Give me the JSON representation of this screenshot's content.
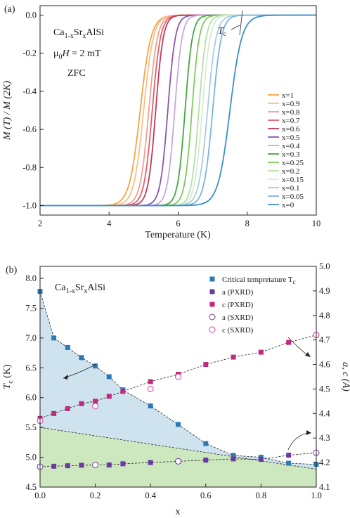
{
  "chart_data": [
    {
      "type": "line",
      "panel_label": "(a)",
      "xlabel": "Temperature (K)",
      "ylabel": "M (T) / M (2K)",
      "xlim": [
        2,
        10
      ],
      "ylim": [
        -1.05,
        0.05
      ],
      "xticks": [
        "2",
        "4",
        "6",
        "8",
        "10"
      ],
      "yticks": [
        "0.0",
        "-0.2",
        "-0.4",
        "-0.6",
        "-0.8",
        "-1.0"
      ],
      "annotations": {
        "compound": "Ca",
        "compound_sub1": "1-x",
        "compound_mid": "Sr",
        "compound_sub2": "x",
        "compound_end": "AlSi",
        "field_pre": "μ",
        "field_sub": "0",
        "field_mid": "H",
        "field_val": " = 2 mT",
        "zfc": "ZFC",
        "tc_label": "T",
        "tc_sub": "c"
      },
      "legend_position": "right",
      "series": [
        {
          "name": "x=1",
          "tc": 4.9,
          "width": 0.5,
          "color": "#f5a442"
        },
        {
          "name": "x=0.9",
          "tc": 5.0,
          "width": 0.45,
          "color": "#f8c08a"
        },
        {
          "name": "x=0.8",
          "tc": 5.15,
          "width": 0.4,
          "color": "#f0a08c"
        },
        {
          "name": "x=0.7",
          "tc": 5.25,
          "width": 0.38,
          "color": "#e0606a"
        },
        {
          "name": "x=0.6",
          "tc": 5.35,
          "width": 0.35,
          "color": "#c03a5e"
        },
        {
          "name": "x=0.5",
          "tc": 5.7,
          "width": 0.35,
          "color": "#8a56b0"
        },
        {
          "name": "x=0.4",
          "tc": 5.9,
          "width": 0.34,
          "color": "#c8a8dc"
        },
        {
          "name": "x=0.3",
          "tc": 6.2,
          "width": 0.34,
          "color": "#44a83a"
        },
        {
          "name": "x=0.25",
          "tc": 6.4,
          "width": 0.34,
          "color": "#7ccc5a"
        },
        {
          "name": "x=0.2",
          "tc": 6.6,
          "width": 0.34,
          "color": "#b6e0a4"
        },
        {
          "name": "x=0.15",
          "tc": 6.7,
          "width": 0.36,
          "color": "#d8ecd0"
        },
        {
          "name": "x=0.1",
          "tc": 6.85,
          "width": 0.4,
          "color": "#a8cce8"
        },
        {
          "name": "x=0.05",
          "tc": 7.0,
          "width": 0.4,
          "color": "#7ab4e0"
        },
        {
          "name": "x=0",
          "tc": 7.5,
          "width": 0.55,
          "color": "#3a8ed0"
        }
      ]
    },
    {
      "type": "scatter",
      "panel_label": "(b)",
      "xlabel": "x",
      "ylabel_left": "T",
      "ylabel_left_sub": "c",
      "ylabel_left_unit": " (K)",
      "ylabel_right": "a, c (Å)",
      "xlim": [
        0,
        1.0
      ],
      "ylim_left": [
        4.5,
        8.2
      ],
      "ylim_right": [
        4.1,
        5.0
      ],
      "xticks": [
        "0.0",
        "0.2",
        "0.4",
        "0.6",
        "0.8",
        "1.0"
      ],
      "yticks_left": [
        "4.5",
        "5.0",
        "5.5",
        "6.0",
        "6.5",
        "7.0",
        "7.5",
        "8.0"
      ],
      "yticks_right": [
        "4.1",
        "4.2",
        "4.3",
        "4.4",
        "4.5",
        "4.6",
        "4.7",
        "4.8",
        "4.9",
        "5.0"
      ],
      "annotation": {
        "compound": "Ca",
        "compound_sub1": "1-x",
        "compound_mid": "Sr",
        "compound_sub2": "x",
        "compound_end": "AlSi"
      },
      "legend_position": "top-right",
      "legend": [
        {
          "label": "Critical tempretature T",
          "sub": "c",
          "marker": "square",
          "color": "#2a7ab8"
        },
        {
          "label": "a (PXRD)",
          "marker": "square",
          "color": "#6a3aa0"
        },
        {
          "label": "c (PXRD)",
          "marker": "square",
          "color": "#c02a80"
        },
        {
          "label": "a (SXRD)",
          "marker": "open-circle",
          "color": "#6a3aa0"
        },
        {
          "label": "c (SXRD)",
          "marker": "open-circle",
          "color": "#e03aa0"
        }
      ],
      "tc": {
        "x": [
          0,
          0.05,
          0.1,
          0.15,
          0.2,
          0.25,
          0.3,
          0.4,
          0.5,
          0.6,
          0.7,
          0.8,
          0.9,
          1.0
        ],
        "y": [
          7.78,
          7.0,
          6.84,
          6.67,
          6.53,
          6.35,
          6.13,
          5.86,
          5.55,
          5.23,
          5.03,
          5.0,
          4.9,
          4.88
        ]
      },
      "a_pxrd": {
        "x": [
          0,
          0.05,
          0.1,
          0.15,
          0.2,
          0.25,
          0.3,
          0.4,
          0.5,
          0.6,
          0.7,
          0.8,
          0.9,
          1.0
        ],
        "y": [
          4.183,
          4.185,
          4.187,
          4.189,
          4.19,
          4.19,
          4.195,
          4.2,
          4.205,
          4.21,
          4.215,
          4.213,
          4.23,
          4.24
        ]
      },
      "c_pxrd": {
        "x": [
          0,
          0.05,
          0.1,
          0.15,
          0.2,
          0.25,
          0.3,
          0.4,
          0.5,
          0.6,
          0.7,
          0.8,
          0.9,
          1.0
        ],
        "y": [
          4.38,
          4.4,
          4.42,
          4.44,
          4.45,
          4.47,
          4.49,
          4.53,
          4.56,
          4.6,
          4.63,
          4.65,
          4.69,
          4.72
        ]
      },
      "a_sxrd": {
        "x": [
          0,
          0.2,
          0.5,
          1.0
        ],
        "y": [
          4.183,
          4.19,
          4.205,
          4.24
        ]
      },
      "c_sxrd": {
        "x": [
          0,
          0.2,
          0.4,
          0.5,
          1.0
        ],
        "y": [
          4.37,
          4.43,
          4.5,
          4.55,
          4.72
        ]
      }
    }
  ]
}
